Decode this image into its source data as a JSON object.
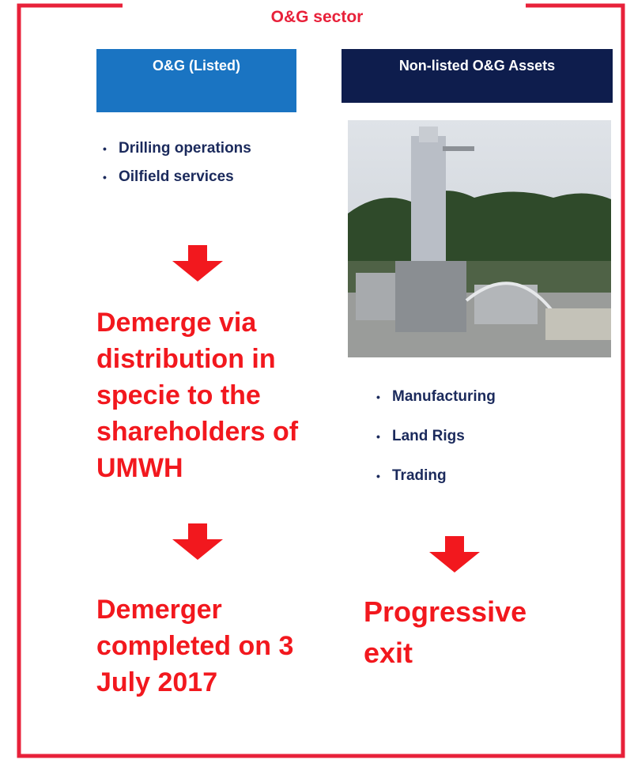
{
  "title": "O&G sector",
  "columns": [
    {
      "header": "O&G (Listed)",
      "bullets": [
        "Drilling operations",
        "Oilfield services"
      ],
      "steps": [
        "Demerge via distribution in specie to the shareholders of UMWH",
        "Demerger completed on 3 July 2017"
      ]
    },
    {
      "header": "Non-listed O&G Assets",
      "bullets": [
        "Manufacturing",
        "Land Rigs",
        "Trading"
      ],
      "steps": [
        "Progressive exit"
      ]
    }
  ]
}
